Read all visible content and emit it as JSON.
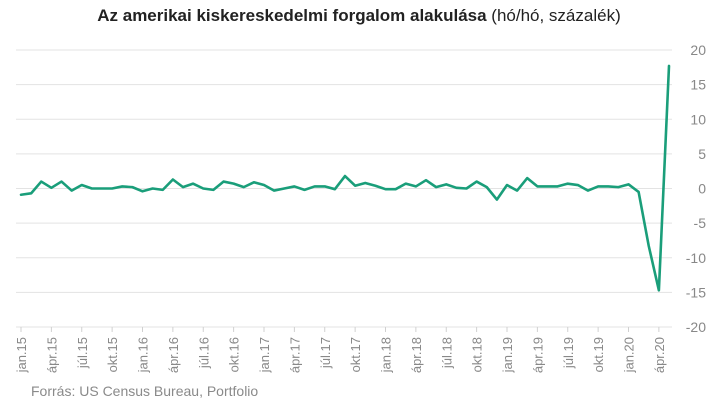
{
  "chart_data": {
    "type": "line",
    "title_bold": "Az amerikai kiskereskedelmi forgalom alakulása",
    "title_rest": " (hó/hó, százalék)",
    "source": "Forrás: US Census Bureau, Portfolio",
    "ylim": [
      -20,
      20
    ],
    "yticks": [
      20,
      15,
      10,
      5,
      0,
      -5,
      -10,
      -15,
      -20
    ],
    "y_axis_position": "right",
    "grid": "horizontal",
    "line_color": "#1a9e7a",
    "x_labels": [
      {
        "index": 0,
        "label": "jan.15"
      },
      {
        "index": 3,
        "label": "ápr.15"
      },
      {
        "index": 6,
        "label": "júl.15"
      },
      {
        "index": 9,
        "label": "okt.15"
      },
      {
        "index": 12,
        "label": "jan.16"
      },
      {
        "index": 15,
        "label": "ápr.16"
      },
      {
        "index": 18,
        "label": "júl.16"
      },
      {
        "index": 21,
        "label": "okt.16"
      },
      {
        "index": 24,
        "label": "jan.17"
      },
      {
        "index": 27,
        "label": "ápr.17"
      },
      {
        "index": 30,
        "label": "júl.17"
      },
      {
        "index": 33,
        "label": "okt.17"
      },
      {
        "index": 36,
        "label": "jan.18"
      },
      {
        "index": 39,
        "label": "ápr.18"
      },
      {
        "index": 42,
        "label": "júl.18"
      },
      {
        "index": 45,
        "label": "okt.18"
      },
      {
        "index": 48,
        "label": "jan.19"
      },
      {
        "index": 51,
        "label": "ápr.19"
      },
      {
        "index": 54,
        "label": "júl.19"
      },
      {
        "index": 57,
        "label": "okt.19"
      },
      {
        "index": 60,
        "label": "jan.20"
      },
      {
        "index": 63,
        "label": "ápr.20"
      }
    ],
    "values": [
      -0.9,
      -0.7,
      1.0,
      0.1,
      1.0,
      -0.3,
      0.5,
      0.0,
      0.0,
      0.0,
      0.3,
      0.2,
      -0.4,
      0.0,
      -0.2,
      1.3,
      0.2,
      0.7,
      0.0,
      -0.2,
      1.0,
      0.7,
      0.2,
      0.9,
      0.5,
      -0.3,
      0.0,
      0.3,
      -0.2,
      0.3,
      0.3,
      -0.1,
      1.8,
      0.4,
      0.8,
      0.4,
      -0.1,
      -0.1,
      0.7,
      0.3,
      1.2,
      0.2,
      0.6,
      0.1,
      0.0,
      1.0,
      0.2,
      -1.6,
      0.5,
      -0.3,
      1.5,
      0.3,
      0.3,
      0.3,
      0.7,
      0.5,
      -0.3,
      0.3,
      0.3,
      0.2,
      0.6,
      -0.5,
      -8.3,
      -14.7,
      17.7
    ]
  }
}
